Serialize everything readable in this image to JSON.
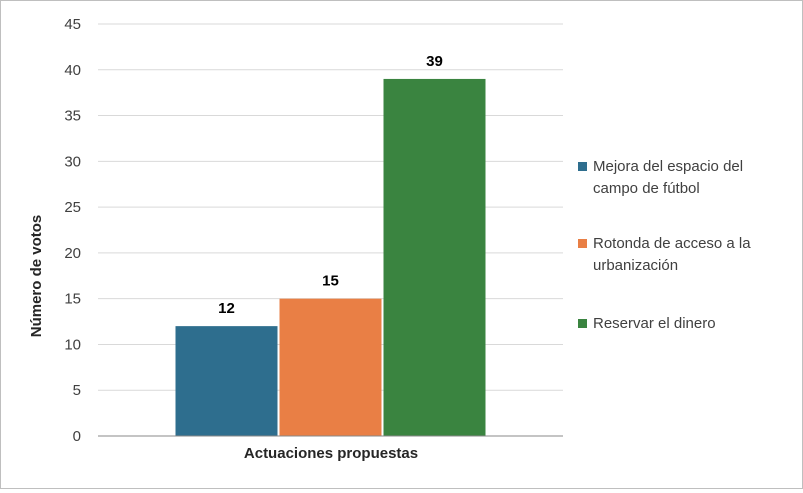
{
  "chart_data": {
    "type": "bar",
    "title": "",
    "xlabel": "Actuaciones propuestas",
    "ylabel": "Número de votos",
    "ylim": [
      0,
      45
    ],
    "yticks": [
      0,
      5,
      10,
      15,
      20,
      25,
      30,
      35,
      40,
      45
    ],
    "grid": true,
    "legend_position": "right",
    "categories": [
      "Actuaciones propuestas"
    ],
    "series": [
      {
        "name": "Mejora del espacio del campo de fútbol",
        "values": [
          12
        ],
        "color": "#2e6e8e",
        "legend_lines": [
          "Mejora del espacio del",
          "campo de fútbol"
        ]
      },
      {
        "name": "Rotonda de acceso a la urbanización",
        "values": [
          15
        ],
        "color": "#e97f45",
        "legend_lines": [
          "Rotonda de acceso a la",
          "urbanización"
        ]
      },
      {
        "name": "Reservar el dinero",
        "values": [
          39
        ],
        "color": "#3a8440",
        "legend_lines": [
          "Reservar el dinero"
        ]
      }
    ]
  }
}
